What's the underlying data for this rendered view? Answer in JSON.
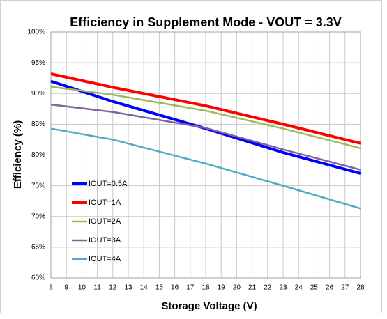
{
  "chart_data": {
    "type": "line",
    "title": "Efficiency in Supplement Mode - VOUT = 3.3V",
    "x_label": "Storage Voltage (V)",
    "y_label": "Efficiency (%)",
    "x": [
      8,
      12,
      18,
      23,
      28
    ],
    "series": [
      {
        "name": "IOUT=0.5A",
        "color": "#0000ff",
        "line_width": 4,
        "values": [
          92.0,
          88.7,
          84.3,
          80.4,
          77.0
        ]
      },
      {
        "name": "IOUT=1A",
        "color": "#ff0000",
        "line_width": 4,
        "values": [
          93.2,
          91.0,
          88.0,
          85.0,
          81.9
        ]
      },
      {
        "name": "IOUT=2A",
        "color": "#9bbb59",
        "line_width": 2.5,
        "values": [
          91.1,
          89.8,
          87.2,
          84.3,
          81.1
        ]
      },
      {
        "name": "IOUT=3A",
        "color": "#8064a2",
        "line_width": 2.5,
        "values": [
          88.2,
          87.0,
          84.4,
          80.9,
          77.6
        ]
      },
      {
        "name": "IOUT=4A",
        "color": "#4bacc6",
        "line_width": 2.5,
        "values": [
          84.3,
          82.5,
          78.6,
          75.0,
          71.3
        ]
      }
    ],
    "xlim": [
      8,
      28
    ],
    "xticks": [
      8,
      9,
      10,
      11,
      12,
      13,
      14,
      15,
      16,
      17,
      18,
      19,
      20,
      21,
      22,
      23,
      24,
      25,
      26,
      27,
      28
    ],
    "ylim": [
      60,
      100
    ],
    "yticks": [
      {
        "value": 60,
        "label": "60%"
      },
      {
        "value": 65,
        "label": "65%"
      },
      {
        "value": 70,
        "label": "70%"
      },
      {
        "value": 75,
        "label": "75%"
      },
      {
        "value": 80,
        "label": "80%"
      },
      {
        "value": 85,
        "label": "85%"
      },
      {
        "value": 90,
        "label": "90%"
      },
      {
        "value": 95,
        "label": "95%"
      },
      {
        "value": 100,
        "label": "100%"
      }
    ],
    "grid": true,
    "legend": "left"
  }
}
